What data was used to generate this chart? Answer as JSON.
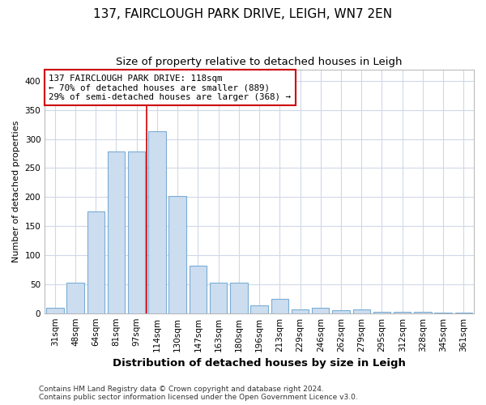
{
  "title": "137, FAIRCLOUGH PARK DRIVE, LEIGH, WN7 2EN",
  "subtitle": "Size of property relative to detached houses in Leigh",
  "xlabel": "Distribution of detached houses by size in Leigh",
  "ylabel": "Number of detached properties",
  "footnote": "Contains HM Land Registry data © Crown copyright and database right 2024.\nContains public sector information licensed under the Open Government Licence v3.0.",
  "categories": [
    "31sqm",
    "48sqm",
    "64sqm",
    "81sqm",
    "97sqm",
    "114sqm",
    "130sqm",
    "147sqm",
    "163sqm",
    "180sqm",
    "196sqm",
    "213sqm",
    "229sqm",
    "246sqm",
    "262sqm",
    "279sqm",
    "295sqm",
    "312sqm",
    "328sqm",
    "345sqm",
    "361sqm"
  ],
  "values": [
    10,
    53,
    175,
    278,
    278,
    313,
    202,
    82,
    52,
    52,
    14,
    25,
    6,
    9,
    5,
    6,
    3,
    2,
    2,
    1,
    1
  ],
  "bar_color": "#ccddf0",
  "bar_edge_color": "#7aadd4",
  "vline_color": "#cc0000",
  "vline_x": 4.5,
  "annotation_line1": "137 FAIRCLOUGH PARK DRIVE: 118sqm",
  "annotation_line2": "← 70% of detached houses are smaller (889)",
  "annotation_line3": "29% of semi-detached houses are larger (368) →",
  "annotation_box_edge_color": "#cc0000",
  "ylim_max": 420,
  "yticks": [
    0,
    50,
    100,
    150,
    200,
    250,
    300,
    350,
    400
  ],
  "bg_color": "#ffffff",
  "plot_bg_color": "#ffffff",
  "grid_color": "#d0d8e8",
  "title_fontsize": 11,
  "subtitle_fontsize": 9.5,
  "xlabel_fontsize": 9.5,
  "ylabel_fontsize": 8,
  "tick_fontsize": 7.5,
  "footnote_fontsize": 6.5
}
